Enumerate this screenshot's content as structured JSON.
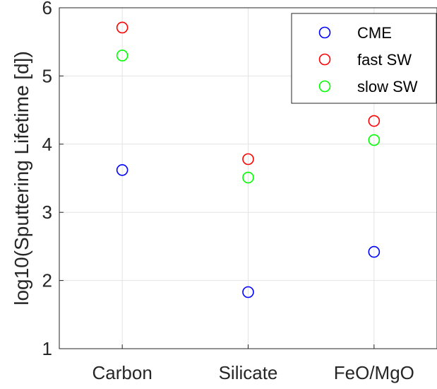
{
  "chart_data": {
    "type": "scatter",
    "title": "",
    "xlabel": "",
    "ylabel": "log10(Sputtering Lifetime [d])",
    "categories": [
      "Carbon",
      "Silicate",
      "FeO/MgO"
    ],
    "ylim": [
      1,
      6
    ],
    "yticks": [
      1,
      2,
      3,
      4,
      5,
      6
    ],
    "grid": true,
    "legend_position": "top-right",
    "marker": "open-circle",
    "series": [
      {
        "name": "CME",
        "color": "#0000ff",
        "values": [
          3.62,
          1.83,
          2.42
        ]
      },
      {
        "name": "fast SW",
        "color": "#ff0000",
        "values": [
          5.71,
          3.78,
          4.34
        ]
      },
      {
        "name": "slow SW",
        "color": "#00ff00",
        "values": [
          5.3,
          3.51,
          4.06
        ]
      }
    ]
  }
}
